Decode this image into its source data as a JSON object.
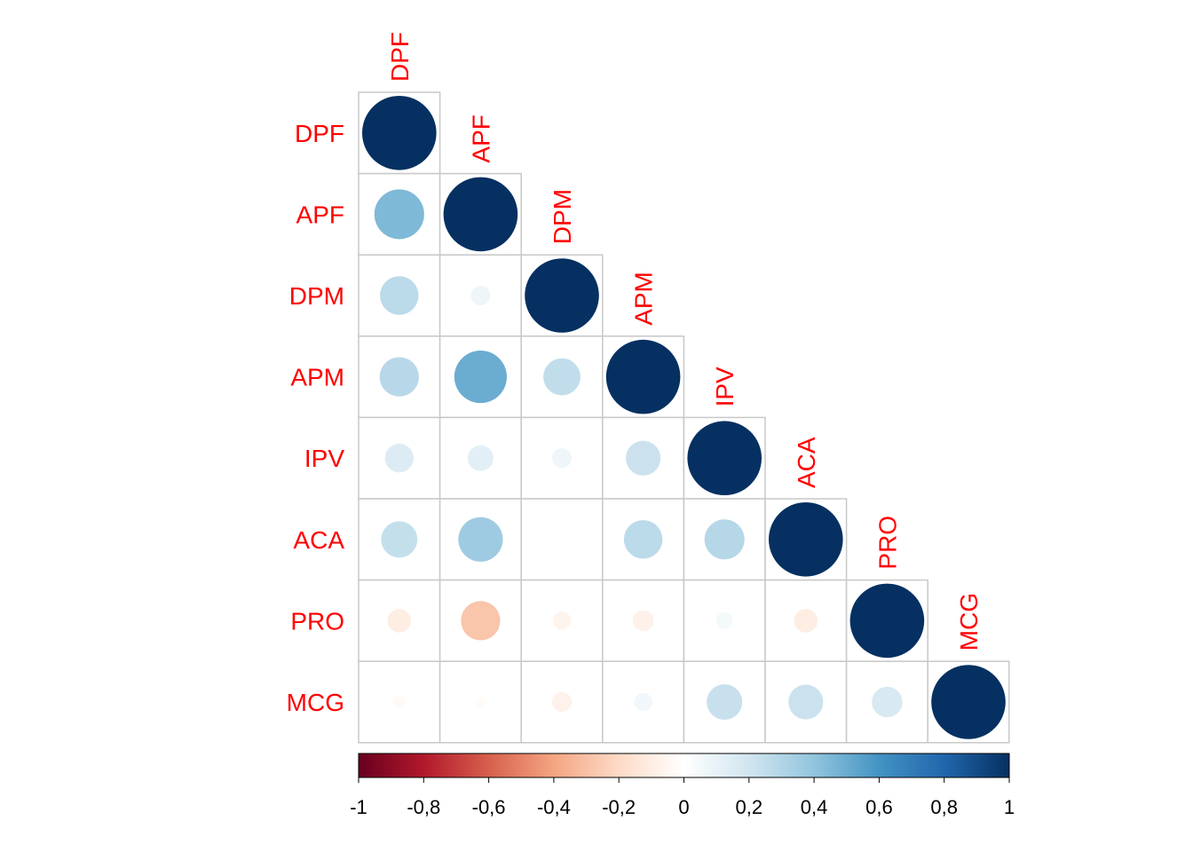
{
  "chart_data": {
    "type": "heatmap",
    "variables": [
      "DPF",
      "APF",
      "DPM",
      "APM",
      "IPV",
      "ACA",
      "PRO",
      "MCG"
    ],
    "layout": "lower-triangle-with-diagonal",
    "marker": "circle",
    "matrix": [
      [
        1.0
      ],
      [
        0.45,
        1.0
      ],
      [
        0.27,
        0.07,
        1.0
      ],
      [
        0.28,
        0.5,
        0.25,
        1.0
      ],
      [
        0.15,
        0.12,
        0.07,
        0.22,
        1.0
      ],
      [
        0.24,
        0.36,
        0.0,
        0.27,
        0.29,
        1.0
      ],
      [
        -0.1,
        -0.28,
        -0.06,
        -0.08,
        0.05,
        -0.1,
        1.0
      ],
      [
        -0.03,
        -0.02,
        -0.07,
        0.06,
        0.23,
        0.22,
        0.17,
        1.0
      ]
    ],
    "colorbar": {
      "range": [
        -1,
        1
      ],
      "tick_labels": [
        "-1",
        "-0,8",
        "-0,6",
        "-0,4",
        "-0,2",
        "0",
        "0,2",
        "0,4",
        "0,6",
        "0,8",
        "1"
      ]
    },
    "label_color": "#ff0000",
    "palette": [
      "#67001f",
      "#b2182b",
      "#d6604d",
      "#f4a582",
      "#fddbc7",
      "#ffffff",
      "#d1e5f0",
      "#92c5de",
      "#4393c3",
      "#2166ac",
      "#053061"
    ]
  }
}
